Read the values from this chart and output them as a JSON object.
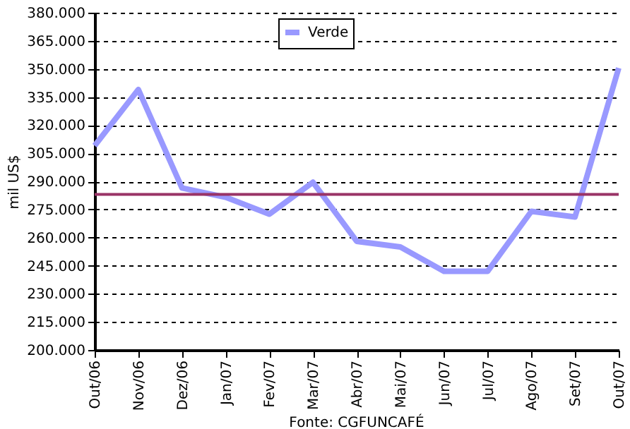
{
  "chart_data": {
    "type": "line",
    "ylabel": "mil US$",
    "categories": [
      "Out/06",
      "Nov/06",
      "Dez/06",
      "Jan/07",
      "Fev/07",
      "Mar/07",
      "Abr/07",
      "Mai/07",
      "Jun/07",
      "Jul/07",
      "Ago/07",
      "Set/07",
      "Out/07"
    ],
    "series": [
      {
        "name": "Verde",
        "color": "#9999ff",
        "values": [
          309000,
          339000,
          286500,
          281500,
          272500,
          289500,
          258000,
          255000,
          242000,
          242000,
          274000,
          271000,
          350500
        ]
      }
    ],
    "ylim": [
      200000,
      380000
    ],
    "yticks": [
      {
        "value": 200000,
        "label": "200.000"
      },
      {
        "value": 215000,
        "label": "215.000"
      },
      {
        "value": 230000,
        "label": "230.000"
      },
      {
        "value": 245000,
        "label": "245.000"
      },
      {
        "value": 260000,
        "label": "260.000"
      },
      {
        "value": 275000,
        "label": "275.000"
      },
      {
        "value": 290000,
        "label": "290.000"
      },
      {
        "value": 305000,
        "label": "305.000"
      },
      {
        "value": 320000,
        "label": "320.000"
      },
      {
        "value": 335000,
        "label": "335.000"
      },
      {
        "value": 350000,
        "label": "350.000"
      },
      {
        "value": 365000,
        "label": "365.000"
      },
      {
        "value": 380000,
        "label": "380.000"
      }
    ],
    "ref_lines": [
      {
        "axis": "y",
        "value": 283000,
        "color": "#993366"
      }
    ],
    "grid": "y",
    "legend": "top",
    "marker": "none",
    "line_style": "solid",
    "annotations": [
      "Fonte: CGFUNCAFÉ"
    ]
  }
}
